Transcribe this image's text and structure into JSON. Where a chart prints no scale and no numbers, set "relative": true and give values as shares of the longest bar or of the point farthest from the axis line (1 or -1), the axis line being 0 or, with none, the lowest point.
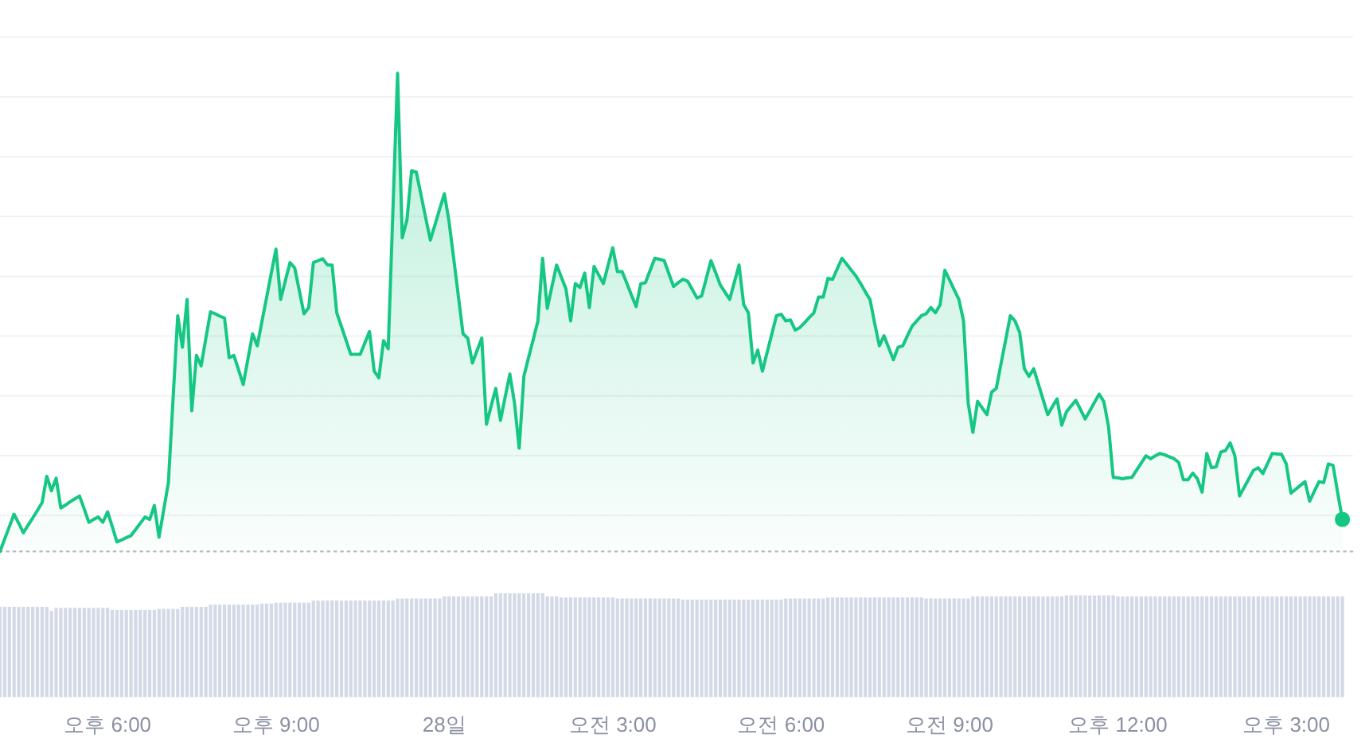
{
  "chart_data": [
    {
      "type": "area",
      "relative": true,
      "grid": "y",
      "ref_lines": [
        {
          "axis": "y",
          "value": 0,
          "line_style": "dotted",
          "color": "#b7bcc5"
        }
      ],
      "categories": [
        null,
        null,
        null,
        null,
        null,
        null,
        null,
        null,
        null,
        null,
        null,
        null,
        null,
        null,
        null,
        null,
        null,
        null,
        null,
        null,
        null,
        null,
        null,
        "오후 6:00",
        null,
        null,
        null,
        null,
        null,
        null,
        null,
        null,
        null,
        null,
        null,
        null,
        null,
        null,
        null,
        null,
        null,
        null,
        null,
        null,
        null,
        null,
        null,
        null,
        null,
        null,
        null,
        null,
        null,
        null,
        null,
        null,
        null,
        null,
        null,
        "오후 9:00",
        null,
        null,
        null,
        null,
        null,
        null,
        null,
        null,
        null,
        null,
        null,
        null,
        null,
        null,
        null,
        null,
        null,
        null,
        null,
        null,
        null,
        null,
        null,
        null,
        null,
        null,
        null,
        null,
        null,
        null,
        null,
        null,
        null,
        null,
        null,
        "28일",
        null,
        null,
        null,
        null,
        null,
        null,
        null,
        null,
        null,
        null,
        null,
        null,
        null,
        null,
        null,
        null,
        null,
        null,
        null,
        null,
        null,
        null,
        null,
        null,
        null,
        null,
        null,
        null,
        null,
        null,
        null,
        null,
        null,
        null,
        null,
        "오전 3:00",
        null,
        null,
        null,
        null,
        null,
        null,
        null,
        null,
        null,
        null,
        null,
        null,
        null,
        null,
        null,
        null,
        null,
        null,
        null,
        null,
        null,
        null,
        null,
        null,
        null,
        null,
        null,
        null,
        null,
        null,
        null,
        null,
        null,
        null,
        null,
        "오전 6:00",
        null,
        null,
        null,
        null,
        null,
        null,
        null,
        null,
        null,
        null,
        null,
        null,
        null,
        null,
        null,
        null,
        null,
        null,
        null,
        null,
        null,
        null,
        null,
        null,
        null,
        null,
        null,
        null,
        null,
        null,
        null,
        null,
        null,
        null,
        null,
        "오전 9:00",
        null,
        null,
        null,
        null,
        null,
        null,
        null,
        null,
        null,
        null,
        null,
        null,
        null,
        null,
        null,
        null,
        null,
        null,
        null,
        null,
        null,
        null,
        null,
        null,
        null,
        null,
        null,
        null,
        null,
        null,
        null,
        null,
        null,
        null,
        null,
        "오후 12:00",
        null,
        null,
        null,
        null,
        null,
        null,
        null,
        null,
        null,
        null,
        null,
        null,
        null,
        null,
        null,
        null,
        null,
        null,
        null,
        null,
        null,
        null,
        null,
        null,
        null,
        null,
        null,
        null,
        null,
        null,
        null,
        null,
        null,
        null,
        null,
        "오후 3:00",
        null,
        null,
        null,
        null,
        null,
        null,
        null,
        null,
        null,
        null,
        null,
        null
      ],
      "series": [
        {
          "color": "#16c784",
          "values": [
            0,
            0.026,
            0.052,
            0.078,
            0.059,
            0.039,
            0.055,
            0.07,
            0.086,
            0.102,
            0.157,
            0.127,
            0.153,
            0.091,
            0.097,
            0.104,
            0.11,
            0.116,
            0.089,
            0.061,
            0.067,
            0.072,
            0.061,
            0.083,
            0.052,
            0.02,
            0.024,
            0.029,
            0.033,
            0.046,
            0.059,
            0.072,
            0.067,
            0.096,
            0.03,
            0.087,
            0.144,
            0.319,
            0.493,
            0.427,
            0.527,
            0.294,
            0.41,
            0.388,
            0.445,
            0.501,
            0.497,
            0.492,
            0.488,
            0.405,
            0.41,
            0.38,
            0.349,
            0.402,
            0.455,
            0.43,
            0.481,
            0.531,
            0.582,
            0.632,
            0.527,
            0.566,
            0.604,
            0.593,
            0.545,
            0.497,
            0.51,
            0.604,
            0.608,
            0.612,
            0.599,
            0.599,
            0.499,
            0.47,
            0.441,
            0.412,
            0.412,
            0.412,
            0.436,
            0.46,
            0.377,
            0.363,
            0.441,
            0.424,
            0.712,
            1,
            0.656,
            0.693,
            0.796,
            0.793,
            0.746,
            0.698,
            0.651,
            0.683,
            0.716,
            0.748,
            0.69,
            0.612,
            0.533,
            0.455,
            0.446,
            0.394,
            0.42,
            0.446,
            0.266,
            0.304,
            0.341,
            0.274,
            0.323,
            0.371,
            0.31,
            0.216,
            0.366,
            0.405,
            0.443,
            0.482,
            0.613,
            0.508,
            0.554,
            0.599,
            0.574,
            0.549,
            0.482,
            0.56,
            0.552,
            0.582,
            0.51,
            0.596,
            0.578,
            0.56,
            0.598,
            0.635,
            0.585,
            0.585,
            0.561,
            0.536,
            0.512,
            0.56,
            0.562,
            0.588,
            0.613,
            0.611,
            0.608,
            0.581,
            0.554,
            0.562,
            0.569,
            0.565,
            0.548,
            0.53,
            0.534,
            0.571,
            0.608,
            0.583,
            0.557,
            0.542,
            0.527,
            0.563,
            0.599,
            0.516,
            0.499,
            0.394,
            0.421,
            0.377,
            0.416,
            0.454,
            0.493,
            0.496,
            0.482,
            0.484,
            0.463,
            0.468,
            0.478,
            0.489,
            0.499,
            0.532,
            0.532,
            0.571,
            0.569,
            0.591,
            0.613,
            0.601,
            0.588,
            0.576,
            0.56,
            0.543,
            0.527,
            0.477,
            0.43,
            0.451,
            0.426,
            0.401,
            0.427,
            0.43,
            0.451,
            0.471,
            0.482,
            0.493,
            0.497,
            0.51,
            0.499,
            0.516,
            0.588,
            0.568,
            0.547,
            0.527,
            0.482,
            0.31,
            0.249,
            0.314,
            0.3,
            0.286,
            0.333,
            0.341,
            0.392,
            0.442,
            0.493,
            0.482,
            0.458,
            0.382,
            0.366,
            0.382,
            0.35,
            0.318,
            0.286,
            0.303,
            0.319,
            0.264,
            0.292,
            0.304,
            0.316,
            0.297,
            0.277,
            0.294,
            0.312,
            0.329,
            0.313,
            0.261,
            0.155,
            0.154,
            0.152,
            0.154,
            0.155,
            0.17,
            0.185,
            0.2,
            0.194,
            0.2,
            0.205,
            0.202,
            0.198,
            0.194,
            0.186,
            0.15,
            0.15,
            0.164,
            0.152,
            0.124,
            0.205,
            0.175,
            0.177,
            0.208,
            0.211,
            0.227,
            0.2,
            0.116,
            0.134,
            0.152,
            0.17,
            0.175,
            0.163,
            0.184,
            0.205,
            0.204,
            0.203,
            0.183,
            0.122,
            0.13,
            0.138,
            0.146,
            0.105,
            0.126,
            0.146,
            0.144,
            0.183,
            0.18,
            0.122,
            0.067
          ]
        },
        {
          "type": "scatter",
          "color": "#16c784",
          "values": [
            null,
            null,
            null,
            null,
            null,
            null,
            null,
            null,
            null,
            null,
            null,
            null,
            null,
            null,
            null,
            null,
            null,
            null,
            null,
            null,
            null,
            null,
            null,
            null,
            null,
            null,
            null,
            null,
            null,
            null,
            null,
            null,
            null,
            null,
            null,
            null,
            null,
            null,
            null,
            null,
            null,
            null,
            null,
            null,
            null,
            null,
            null,
            null,
            null,
            null,
            null,
            null,
            null,
            null,
            null,
            null,
            null,
            null,
            null,
            null,
            null,
            null,
            null,
            null,
            null,
            null,
            null,
            null,
            null,
            null,
            null,
            null,
            null,
            null,
            null,
            null,
            null,
            null,
            null,
            null,
            null,
            null,
            null,
            null,
            null,
            null,
            null,
            null,
            null,
            null,
            null,
            null,
            null,
            null,
            null,
            null,
            null,
            null,
            null,
            null,
            null,
            null,
            null,
            null,
            null,
            null,
            null,
            null,
            null,
            null,
            null,
            null,
            null,
            null,
            null,
            null,
            null,
            null,
            null,
            null,
            null,
            null,
            null,
            null,
            null,
            null,
            null,
            null,
            null,
            null,
            null,
            null,
            null,
            null,
            null,
            null,
            null,
            null,
            null,
            null,
            null,
            null,
            null,
            null,
            null,
            null,
            null,
            null,
            null,
            null,
            null,
            null,
            null,
            null,
            null,
            null,
            null,
            null,
            null,
            null,
            null,
            null,
            null,
            null,
            null,
            null,
            null,
            null,
            null,
            null,
            null,
            null,
            null,
            null,
            null,
            null,
            null,
            null,
            null,
            null,
            null,
            null,
            null,
            null,
            null,
            null,
            null,
            null,
            null,
            null,
            null,
            null,
            null,
            null,
            null,
            null,
            null,
            null,
            null,
            null,
            null,
            null,
            null,
            null,
            null,
            null,
            null,
            null,
            null,
            null,
            null,
            null,
            null,
            null,
            null,
            null,
            null,
            null,
            null,
            null,
            null,
            null,
            null,
            null,
            null,
            null,
            null,
            null,
            null,
            null,
            null,
            null,
            null,
            null,
            null,
            null,
            null,
            null,
            null,
            null,
            null,
            null,
            null,
            null,
            null,
            null,
            null,
            null,
            null,
            null,
            null,
            null,
            null,
            null,
            null,
            null,
            null,
            null,
            null,
            null,
            null,
            null,
            null,
            null,
            null,
            null,
            null,
            null,
            null,
            null,
            null,
            null,
            null,
            null,
            null,
            null,
            null,
            null,
            null,
            null,
            null,
            null,
            null,
            null,
            null,
            null,
            null,
            0.067
          ]
        }
      ]
    },
    {
      "type": "bar",
      "relative": true,
      "color": "#d3d9e7",
      "categories": [
        null,
        null,
        null,
        null,
        null,
        null,
        null,
        null,
        null,
        null,
        null,
        null,
        null,
        null,
        null,
        null,
        null,
        null,
        null,
        null,
        null,
        null,
        null,
        null,
        null,
        null,
        null,
        null,
        null,
        null,
        null,
        null,
        null,
        null,
        null,
        null,
        null,
        null,
        null,
        null,
        null,
        null,
        null,
        null,
        null,
        null,
        null,
        null,
        null,
        null,
        null,
        null,
        null,
        null,
        null,
        null,
        null,
        null,
        null,
        null,
        null,
        null,
        null,
        null,
        null,
        null,
        null,
        null,
        null,
        null,
        null,
        null,
        null,
        null,
        null,
        null,
        null,
        null,
        null,
        null,
        null,
        null,
        null,
        null,
        null,
        null,
        null,
        null,
        null,
        null,
        null,
        null,
        null,
        null,
        null,
        null,
        null,
        null,
        null,
        null,
        null,
        null,
        null,
        null,
        null,
        null,
        null,
        null,
        null,
        null,
        null,
        null,
        null,
        null,
        null,
        null,
        null,
        null,
        null,
        null,
        null,
        null,
        null,
        null,
        null,
        null,
        null,
        null,
        null,
        null,
        null,
        null,
        null,
        null,
        null,
        null,
        null,
        null,
        null,
        null,
        null,
        null,
        null,
        null,
        null,
        null,
        null,
        null,
        null,
        null,
        null,
        null,
        null,
        null,
        null,
        null,
        null,
        null,
        null,
        null,
        null,
        null,
        null,
        null,
        null,
        null,
        null,
        null,
        null,
        null,
        null,
        null,
        null,
        null,
        null,
        null,
        null,
        null,
        null,
        null,
        null,
        null,
        null,
        null,
        null,
        null,
        null,
        null,
        null,
        null,
        null,
        null,
        null,
        null,
        null,
        null,
        null,
        null,
        null,
        null,
        null,
        null,
        null,
        null,
        null,
        null,
        null,
        null,
        null,
        null,
        null,
        null,
        null,
        null,
        null,
        null,
        null,
        null,
        null,
        null,
        null,
        null,
        null,
        null,
        null,
        null,
        null,
        null,
        null,
        null,
        null,
        null,
        null,
        null,
        null,
        null,
        null,
        null,
        null,
        null,
        null,
        null,
        null,
        null,
        null,
        null,
        null,
        null,
        null,
        null,
        null,
        null,
        null,
        null,
        null,
        null,
        null,
        null,
        null,
        null,
        null,
        null,
        null,
        null,
        null,
        null,
        null,
        null,
        null,
        null,
        null,
        null,
        null,
        null,
        null,
        null,
        null,
        null,
        null,
        null,
        null,
        null,
        null,
        null,
        null,
        null,
        null,
        null
      ],
      "values": [
        0.87,
        0.87,
        0.87,
        0.87,
        0.87,
        0.87,
        0.87,
        0.87,
        0.87,
        0.87,
        0.87,
        0.83,
        0.86,
        0.86,
        0.86,
        0.86,
        0.86,
        0.86,
        0.86,
        0.86,
        0.86,
        0.86,
        0.86,
        0.86,
        0.84,
        0.84,
        0.84,
        0.84,
        0.84,
        0.84,
        0.84,
        0.84,
        0.84,
        0.84,
        0.85,
        0.85,
        0.85,
        0.85,
        0.85,
        0.87,
        0.87,
        0.87,
        0.87,
        0.87,
        0.87,
        0.89,
        0.89,
        0.89,
        0.89,
        0.89,
        0.89,
        0.89,
        0.89,
        0.89,
        0.89,
        0.89,
        0.9,
        0.9,
        0.9,
        0.91,
        0.91,
        0.91,
        0.91,
        0.91,
        0.91,
        0.91,
        0.91,
        0.93,
        0.93,
        0.93,
        0.93,
        0.93,
        0.93,
        0.93,
        0.93,
        0.93,
        0.93,
        0.93,
        0.93,
        0.93,
        0.93,
        0.93,
        0.93,
        0.93,
        0.93,
        0.95,
        0.95,
        0.95,
        0.95,
        0.95,
        0.95,
        0.95,
        0.95,
        0.95,
        0.95,
        0.97,
        0.97,
        0.97,
        0.97,
        0.97,
        0.97,
        0.97,
        0.97,
        0.97,
        0.97,
        0.97,
        1,
        1,
        1,
        1,
        1,
        1,
        1,
        1,
        1,
        1,
        1,
        0.97,
        0.97,
        0.97,
        0.96,
        0.96,
        0.96,
        0.96,
        0.96,
        0.96,
        0.96,
        0.96,
        0.96,
        0.96,
        0.96,
        0.96,
        0.95,
        0.95,
        0.95,
        0.95,
        0.95,
        0.95,
        0.95,
        0.95,
        0.95,
        0.95,
        0.95,
        0.95,
        0.95,
        0.95,
        0.94,
        0.94,
        0.94,
        0.94,
        0.94,
        0.94,
        0.94,
        0.94,
        0.94,
        0.94,
        0.94,
        0.94,
        0.94,
        0.94,
        0.94,
        0.94,
        0.94,
        0.94,
        0.94,
        0.94,
        0.94,
        0.94,
        0.95,
        0.95,
        0.95,
        0.95,
        0.95,
        0.95,
        0.95,
        0.95,
        0.95,
        0.96,
        0.96,
        0.96,
        0.96,
        0.96,
        0.96,
        0.96,
        0.96,
        0.96,
        0.96,
        0.96,
        0.96,
        0.96,
        0.96,
        0.96,
        0.96,
        0.96,
        0.96,
        0.96,
        0.96,
        0.96,
        0.95,
        0.95,
        0.95,
        0.95,
        0.95,
        0.95,
        0.95,
        0.95,
        0.95,
        0.95,
        0.97,
        0.97,
        0.97,
        0.97,
        0.97,
        0.97,
        0.97,
        0.97,
        0.97,
        0.97,
        0.97,
        0.97,
        0.97,
        0.97,
        0.97,
        0.97,
        0.97,
        0.97,
        0.97,
        0.97,
        0.98,
        0.98,
        0.98,
        0.98,
        0.98,
        0.98,
        0.98,
        0.98,
        0.98,
        0.98,
        0.98,
        0.97,
        0.97,
        0.97,
        0.97,
        0.97,
        0.97,
        0.97,
        0.97,
        0.97,
        0.97,
        0.97,
        0.97,
        0.97,
        0.97,
        0.97,
        0.97,
        0.97,
        0.97,
        0.97,
        0.97,
        0.97,
        0.97,
        0.97,
        0.97,
        0.97,
        0.97,
        0.97,
        0.97,
        0.97,
        0.97,
        0.97,
        0.97,
        0.97,
        0.97,
        0.97,
        0.97,
        0.97,
        0.97,
        0.97,
        0.97,
        0.97,
        0.97,
        0.97,
        0.97,
        0.97,
        0.97,
        0.97,
        0.97,
        0.97
      ]
    }
  ]
}
